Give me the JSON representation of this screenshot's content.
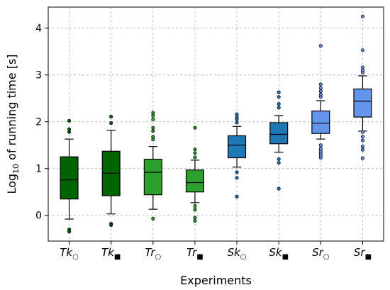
{
  "chart_data": {
    "type": "box",
    "xlabel": "Experiments",
    "ylabel_main": "Log",
    "ylabel_sub": "10",
    "ylabel_rest": " of running time [s]",
    "ylim": [
      -0.55,
      4.45
    ],
    "yticks": [
      0,
      1,
      2,
      3,
      4
    ],
    "grid": true,
    "categories": [
      {
        "base": "Tk",
        "marker": "○"
      },
      {
        "base": "Tk",
        "marker": "■"
      },
      {
        "base": "Tr",
        "marker": "○"
      },
      {
        "base": "Tr",
        "marker": "■"
      },
      {
        "base": "Sk",
        "marker": "○"
      },
      {
        "base": "Sk",
        "marker": "■"
      },
      {
        "base": "Sr",
        "marker": "○"
      },
      {
        "base": "Sr",
        "marker": "■"
      }
    ],
    "boxes": [
      {
        "color": "#006400",
        "whislo": -0.08,
        "q1": 0.35,
        "med": 0.76,
        "q3": 1.25,
        "whishi": 1.63,
        "fliers": [
          -0.3,
          -0.35,
          1.78,
          1.84,
          2.02
        ]
      },
      {
        "color": "#006400",
        "whislo": 0.03,
        "q1": 0.42,
        "med": 0.9,
        "q3": 1.37,
        "whishi": 1.82,
        "fliers": [
          -0.18,
          -0.21,
          1.97,
          2.11
        ]
      },
      {
        "color": "#2ca02c",
        "whislo": 0.13,
        "q1": 0.44,
        "med": 0.92,
        "q3": 1.2,
        "whishi": 1.47,
        "fliers": [
          -0.07,
          1.62,
          1.68,
          1.8,
          1.87,
          2.05,
          2.13,
          2.19
        ]
      },
      {
        "color": "#2ca02c",
        "whislo": 0.27,
        "q1": 0.5,
        "med": 0.7,
        "q3": 0.97,
        "whishi": 1.18,
        "fliers": [
          -0.05,
          -0.12,
          0.12,
          0.2,
          1.24,
          1.33,
          1.41,
          1.87
        ]
      },
      {
        "color": "#1f77b4",
        "whislo": 1.03,
        "q1": 1.23,
        "med": 1.5,
        "q3": 1.7,
        "whishi": 1.9,
        "fliers": [
          0.4,
          0.8,
          0.92,
          1.98,
          2.05,
          2.1,
          2.16
        ]
      },
      {
        "color": "#1f77b4",
        "whislo": 1.35,
        "q1": 1.53,
        "med": 1.73,
        "q3": 1.98,
        "whishi": 2.13,
        "fliers": [
          0.57,
          1.12,
          1.2,
          2.3,
          2.38,
          2.53,
          2.63
        ]
      },
      {
        "color": "#6495ed",
        "whislo": 1.63,
        "q1": 1.75,
        "med": 1.97,
        "q3": 2.23,
        "whishi": 2.45,
        "fliers": [
          1.23,
          1.28,
          1.33,
          1.38,
          1.43,
          1.5,
          2.53,
          2.58,
          2.65,
          2.72,
          2.8,
          3.62
        ]
      },
      {
        "color": "#6495ed",
        "whislo": 1.8,
        "q1": 2.1,
        "med": 2.44,
        "q3": 2.7,
        "whishi": 2.98,
        "fliers": [
          1.22,
          1.4,
          1.47,
          1.6,
          1.68,
          1.78,
          3.05,
          3.1,
          3.16,
          3.53,
          4.25
        ]
      }
    ]
  }
}
